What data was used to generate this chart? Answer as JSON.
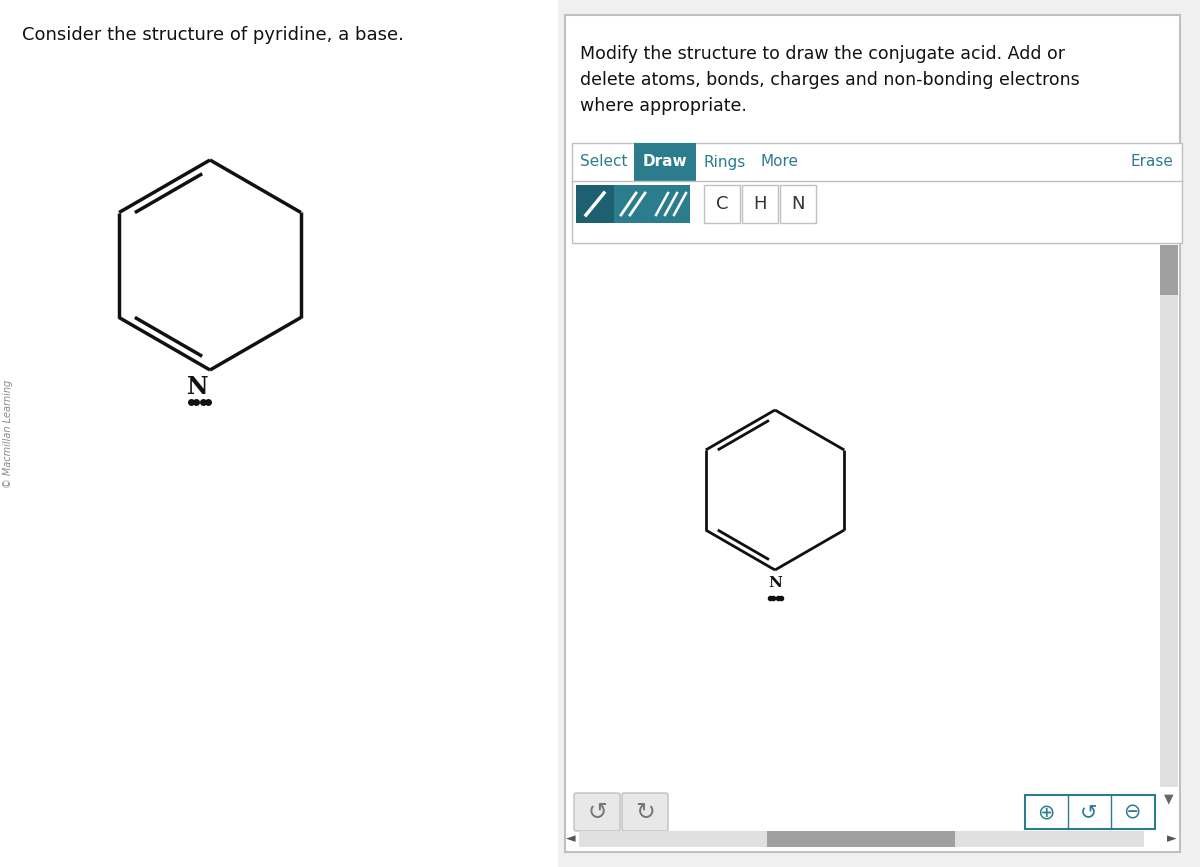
{
  "bg_color": "#f0f0f0",
  "left_panel_bg": "#ffffff",
  "right_panel_bg": "#ffffff",
  "border_color": "#c0c0c0",
  "title_text": "Consider the structure of pyridine, a base.",
  "watermark_text": "© Macmillan Learning",
  "instruction_lines": [
    "Modify the structure to draw the conjugate acid. Add or",
    "delete atoms, bonds, charges and non-bonding electrons",
    "where appropriate."
  ],
  "teal_color": "#2b7d8e",
  "tabs": [
    "Select",
    "Draw",
    "Rings",
    "More",
    "Erase"
  ],
  "active_tab": "Draw",
  "bond_color": "#111111",
  "atom_label_color": "#111111",
  "lone_pair_color": "#111111",
  "scrollbar_bg": "#c8c8c8",
  "scrollbar_thumb": "#a0a0a0",
  "button_border": "#b0b0b0",
  "undo_redo_bg": "#e8e8e8",
  "zoom_btn_color": "#2b7d8e"
}
